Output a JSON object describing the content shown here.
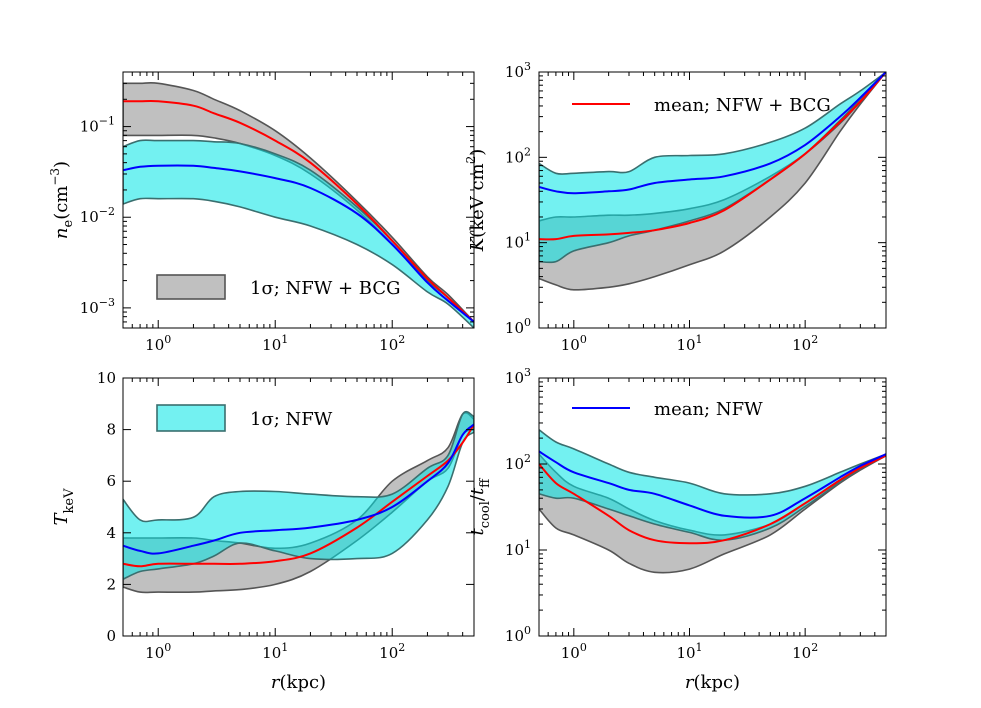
{
  "figure": {
    "rows": 2,
    "cols": 2
  },
  "legend": {
    "gray_band": "1σ; NFW + BCG",
    "cyan_band": "1σ; NFW",
    "red_line": "mean; NFW + BCG",
    "blue_line": "mean; NFW"
  },
  "colors": {
    "gray_band": "#9e9e9e",
    "cyan_band": "#00e5e5",
    "red_line": "#ff0000",
    "blue_line": "#0000ff"
  },
  "chart_data": [
    {
      "id": "ne",
      "type": "area",
      "title": "",
      "xlabel": "",
      "ylabel": "n_e(cm^-3)",
      "xscale": "log",
      "yscale": "log",
      "xlim": [
        0.5,
        500
      ],
      "ylim": [
        0.0006,
        0.4
      ],
      "xticks": [
        {
          "v": 1,
          "base": "10",
          "exp": "0"
        },
        {
          "v": 10,
          "base": "10",
          "exp": "1"
        },
        {
          "v": 100,
          "base": "10",
          "exp": "2"
        }
      ],
      "yticks": [
        {
          "v": 0.001,
          "base": "10",
          "exp": "−3"
        },
        {
          "v": 0.01,
          "base": "10",
          "exp": "−2"
        },
        {
          "v": 0.1,
          "base": "10",
          "exp": "−1"
        }
      ],
      "legend_loc": "lower-left",
      "legend_keys": [
        "gray_band"
      ],
      "x": [
        0.5,
        0.7,
        1,
        2,
        3,
        5,
        10,
        20,
        50,
        100,
        200,
        300,
        500
      ],
      "series": [
        {
          "name": "1σ; NFW + BCG",
          "kind": "band",
          "color": "gray",
          "upper": [
            0.3,
            0.3,
            0.3,
            0.25,
            0.2,
            0.15,
            0.09,
            0.045,
            0.015,
            0.006,
            0.0022,
            0.0014,
            0.0007
          ],
          "lower": [
            0.08,
            0.08,
            0.08,
            0.08,
            0.075,
            0.065,
            0.048,
            0.03,
            0.012,
            0.005,
            0.002,
            0.0013,
            0.0007
          ]
        },
        {
          "name": "1σ; NFW",
          "kind": "band",
          "color": "cyan",
          "upper": [
            0.06,
            0.07,
            0.07,
            0.07,
            0.068,
            0.065,
            0.05,
            0.033,
            0.013,
            0.0055,
            0.002,
            0.0013,
            0.0007
          ],
          "lower": [
            0.014,
            0.016,
            0.016,
            0.016,
            0.015,
            0.013,
            0.01,
            0.008,
            0.005,
            0.003,
            0.0015,
            0.0011,
            0.0006
          ]
        },
        {
          "name": "mean; NFW + BCG",
          "kind": "line",
          "color": "red",
          "values": [
            0.19,
            0.19,
            0.19,
            0.17,
            0.14,
            0.11,
            0.07,
            0.04,
            0.014,
            0.0055,
            0.0021,
            0.0013,
            0.0007
          ]
        },
        {
          "name": "mean; NFW",
          "kind": "line",
          "color": "blue",
          "values": [
            0.033,
            0.036,
            0.037,
            0.037,
            0.035,
            0.032,
            0.027,
            0.021,
            0.011,
            0.005,
            0.0019,
            0.0012,
            0.0007
          ]
        }
      ]
    },
    {
      "id": "K",
      "type": "area",
      "title": "",
      "xlabel": "",
      "ylabel": "K(keV cm^2)",
      "xscale": "log",
      "yscale": "log",
      "xlim": [
        0.5,
        500
      ],
      "ylim": [
        1,
        1000
      ],
      "xticks": [
        {
          "v": 1,
          "base": "10",
          "exp": "0"
        },
        {
          "v": 10,
          "base": "10",
          "exp": "1"
        },
        {
          "v": 100,
          "base": "10",
          "exp": "2"
        }
      ],
      "yticks": [
        {
          "v": 1,
          "base": "10",
          "exp": "0"
        },
        {
          "v": 10,
          "base": "10",
          "exp": "1"
        },
        {
          "v": 100,
          "base": "10",
          "exp": "2"
        },
        {
          "v": 1000,
          "base": "10",
          "exp": "3"
        }
      ],
      "legend_loc": "top",
      "legend_keys": [
        "red_line"
      ],
      "x": [
        0.5,
        0.7,
        1,
        2,
        3,
        5,
        10,
        20,
        50,
        100,
        200,
        300,
        500
      ],
      "series": [
        {
          "name": "1σ; NFW + BCG",
          "kind": "band",
          "color": "gray",
          "upper": [
            18,
            20,
            20,
            21,
            21,
            22,
            25,
            32,
            60,
            110,
            250,
            450,
            1000
          ],
          "lower": [
            3.8,
            3.2,
            2.8,
            3,
            3.3,
            4,
            5.5,
            8,
            20,
            50,
            200,
            420,
            1000
          ]
        },
        {
          "name": "1σ; NFW",
          "kind": "band",
          "color": "cyan",
          "upper": [
            85,
            65,
            65,
            68,
            68,
            100,
            105,
            110,
            150,
            220,
            420,
            600,
            1000
          ],
          "lower": [
            6,
            6,
            8,
            10,
            12,
            14,
            18,
            25,
            55,
            110,
            270,
            480,
            1000
          ]
        },
        {
          "name": "mean; NFW + BCG",
          "kind": "line",
          "color": "red",
          "values": [
            11,
            11,
            12,
            12.5,
            13,
            14,
            17,
            24,
            55,
            110,
            260,
            450,
            1000
          ]
        },
        {
          "name": "mean; NFW",
          "kind": "line",
          "color": "blue",
          "values": [
            45,
            40,
            38,
            40,
            42,
            50,
            55,
            60,
            85,
            140,
            300,
            500,
            1000
          ]
        }
      ]
    },
    {
      "id": "T",
      "type": "area",
      "title": "",
      "xlabel": "r(kpc)",
      "ylabel": "T_keV",
      "xscale": "log",
      "yscale": "linear",
      "xlim": [
        0.5,
        500
      ],
      "ylim": [
        0,
        10
      ],
      "xticks": [
        {
          "v": 1,
          "base": "10",
          "exp": "0"
        },
        {
          "v": 10,
          "base": "10",
          "exp": "1"
        },
        {
          "v": 100,
          "base": "10",
          "exp": "2"
        }
      ],
      "yticks": [
        {
          "v": 0,
          "label": "0"
        },
        {
          "v": 2,
          "label": "2"
        },
        {
          "v": 4,
          "label": "4"
        },
        {
          "v": 6,
          "label": "6"
        },
        {
          "v": 8,
          "label": "8"
        },
        {
          "v": 10,
          "label": "10"
        }
      ],
      "legend_loc": "top-left",
      "legend_keys": [
        "cyan_band"
      ],
      "x": [
        0.5,
        0.7,
        1,
        2,
        3,
        5,
        10,
        20,
        50,
        100,
        200,
        300,
        400,
        500
      ],
      "series": [
        {
          "name": "1σ; NFW + BCG",
          "kind": "band",
          "color": "gray",
          "upper": [
            3.8,
            3.8,
            3.8,
            3.8,
            3.7,
            3.6,
            3.4,
            3.6,
            4.5,
            6,
            6.8,
            7.3,
            8.6,
            8.4
          ],
          "lower": [
            1.9,
            1.7,
            1.7,
            1.7,
            1.75,
            1.8,
            2,
            2.5,
            3.7,
            4.8,
            6,
            6.5,
            7.8,
            8
          ]
        },
        {
          "name": "1σ; NFW",
          "kind": "band",
          "color": "cyan",
          "upper": [
            5.3,
            4.5,
            4.5,
            4.6,
            5.4,
            5.6,
            5.6,
            5.5,
            5.4,
            5.5,
            6.5,
            7,
            8.6,
            8.5
          ],
          "lower": [
            2.2,
            2.5,
            2.6,
            2.8,
            3.1,
            3.6,
            3.3,
            3,
            3,
            3.2,
            4.5,
            5.8,
            7.5,
            7.9
          ]
        },
        {
          "name": "mean; NFW + BCG",
          "kind": "line",
          "color": "red",
          "values": [
            2.8,
            2.7,
            2.8,
            2.8,
            2.8,
            2.8,
            2.9,
            3.2,
            4.2,
            5.2,
            6.2,
            6.8,
            7.5,
            8.2
          ]
        },
        {
          "name": "mean; NFW",
          "kind": "line",
          "color": "blue",
          "values": [
            3.5,
            3.3,
            3.2,
            3.5,
            3.7,
            4,
            4.1,
            4.2,
            4.5,
            5,
            6,
            6.7,
            7.8,
            8.2
          ]
        }
      ]
    },
    {
      "id": "tratio",
      "type": "area",
      "title": "",
      "xlabel": "r(kpc)",
      "ylabel": "t_cool / t_ff",
      "xscale": "log",
      "yscale": "log",
      "xlim": [
        0.5,
        500
      ],
      "ylim": [
        1,
        1000
      ],
      "xticks": [
        {
          "v": 1,
          "base": "10",
          "exp": "0"
        },
        {
          "v": 10,
          "base": "10",
          "exp": "1"
        },
        {
          "v": 100,
          "base": "10",
          "exp": "2"
        }
      ],
      "yticks": [
        {
          "v": 1,
          "base": "10",
          "exp": "0"
        },
        {
          "v": 10,
          "base": "10",
          "exp": "1"
        },
        {
          "v": 100,
          "base": "10",
          "exp": "2"
        },
        {
          "v": 1000,
          "base": "10",
          "exp": "3"
        }
      ],
      "legend_loc": "top",
      "legend_keys": [
        "blue_line"
      ],
      "x": [
        0.5,
        0.7,
        1,
        2,
        3,
        5,
        10,
        20,
        50,
        100,
        200,
        300,
        500
      ],
      "series": [
        {
          "name": "1σ; NFW + BCG",
          "kind": "band",
          "color": "gray",
          "upper": [
            130,
            80,
            55,
            40,
            30,
            22,
            17,
            15,
            20,
            35,
            65,
            90,
            125
          ],
          "lower": [
            30,
            18,
            15,
            10,
            7,
            5.5,
            6,
            9,
            15,
            30,
            60,
            85,
            125
          ]
        },
        {
          "name": "1σ; NFW",
          "kind": "band",
          "color": "cyan",
          "upper": [
            250,
            180,
            150,
            100,
            80,
            70,
            60,
            45,
            45,
            55,
            80,
            100,
            130
          ],
          "lower": [
            45,
            40,
            40,
            30,
            25,
            20,
            16,
            13,
            18,
            32,
            62,
            88,
            125
          ]
        },
        {
          "name": "mean; NFW + BCG",
          "kind": "line",
          "color": "red",
          "values": [
            100,
            60,
            45,
            25,
            17,
            13,
            12,
            13,
            20,
            35,
            65,
            90,
            125
          ]
        },
        {
          "name": "mean; NFW",
          "kind": "line",
          "color": "blue",
          "values": [
            140,
            105,
            80,
            60,
            50,
            45,
            33,
            25,
            25,
            40,
            70,
            95,
            130
          ]
        }
      ]
    }
  ]
}
